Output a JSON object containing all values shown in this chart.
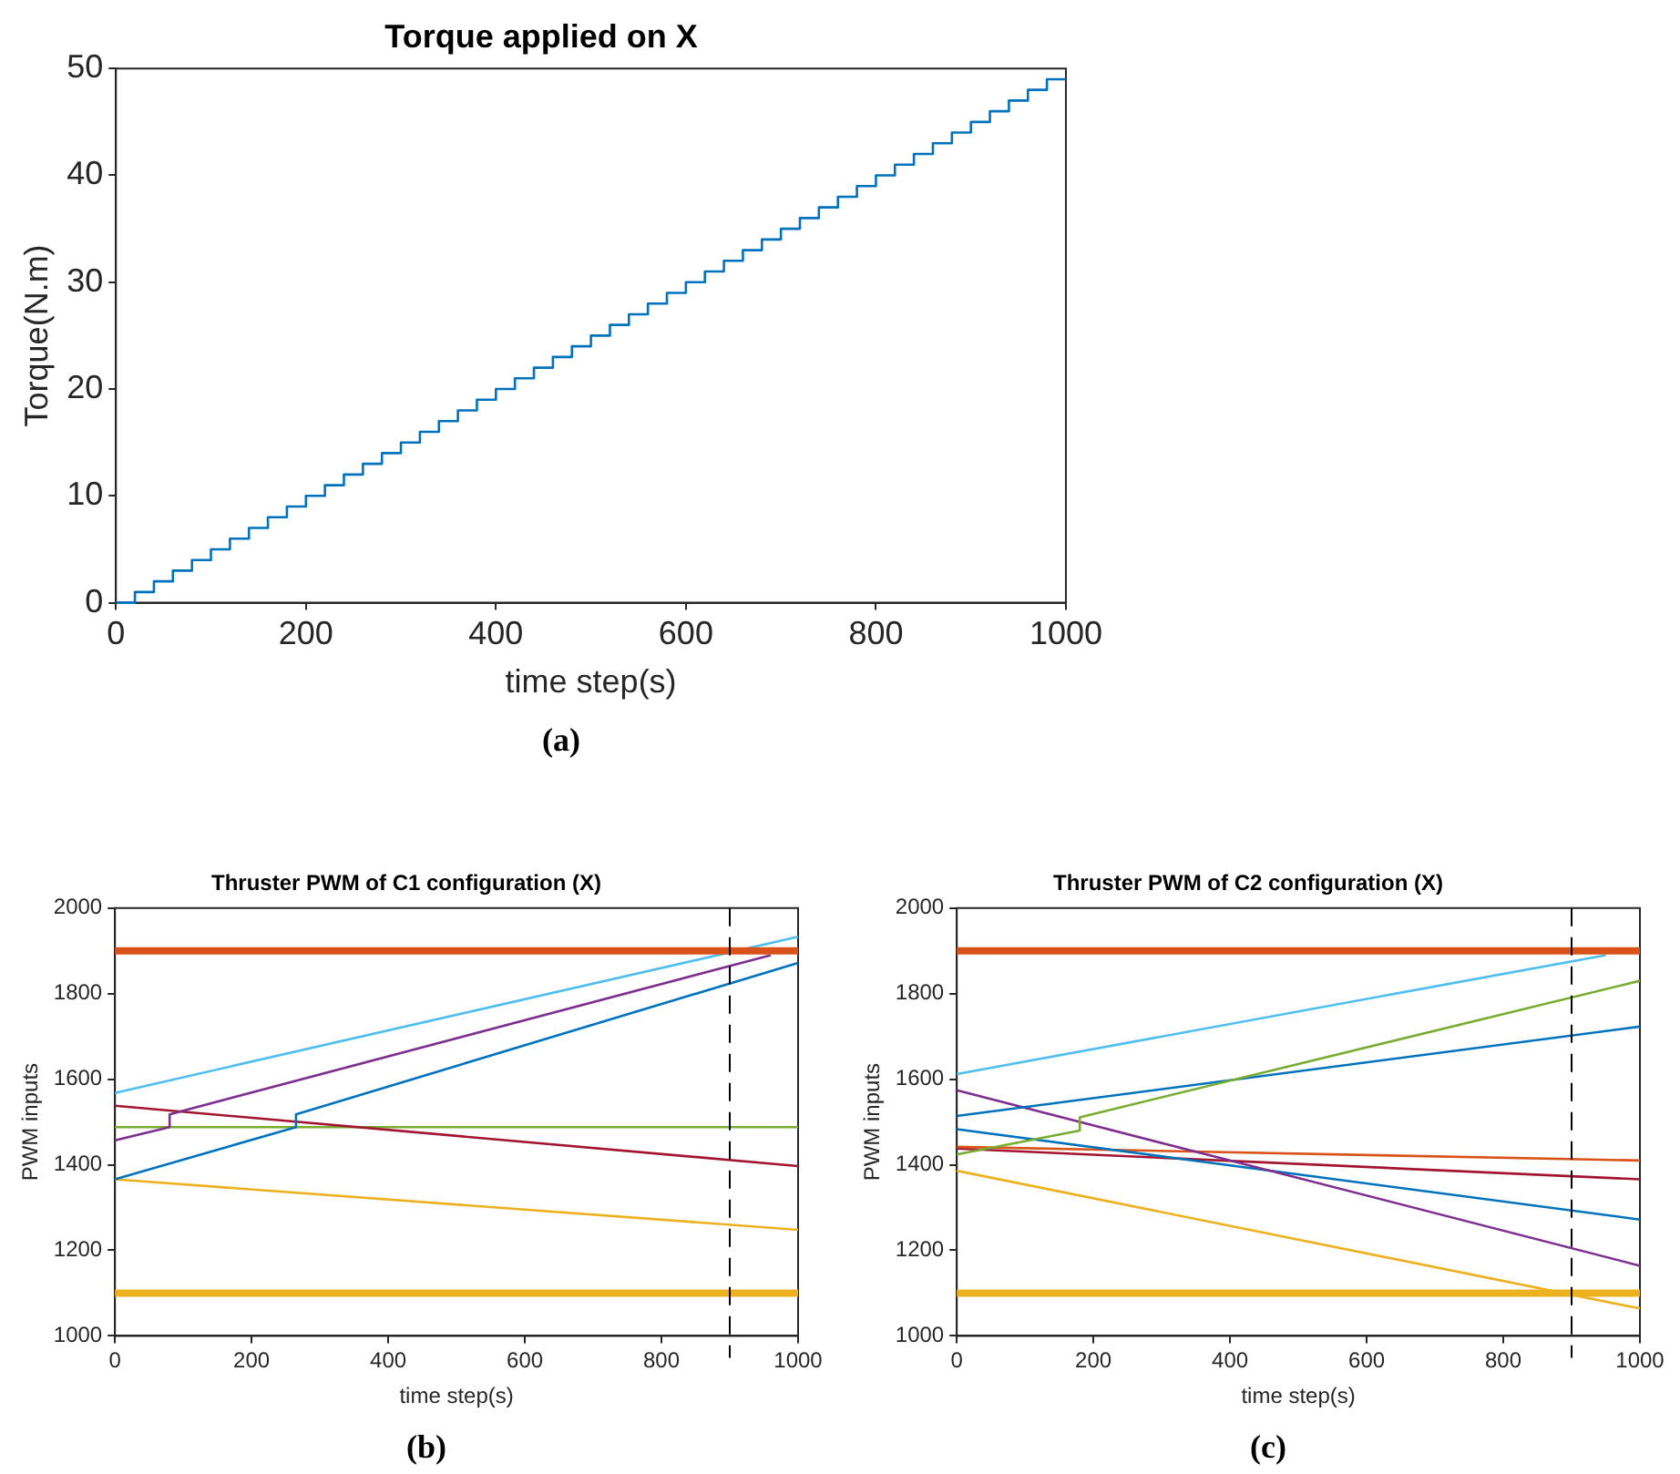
{
  "chart_data": [
    {
      "type": "step",
      "title": "Torque applied on X",
      "xlabel": "time step(s)",
      "ylabel": "Torque(N.m)",
      "annotations": [
        "(a)"
      ],
      "xlim": [
        0,
        1000
      ],
      "xticks": [
        0,
        200,
        400,
        600,
        800,
        1000
      ],
      "ylim": [
        0,
        50
      ],
      "yticks": [
        0,
        10,
        20,
        30,
        40,
        50
      ],
      "grid": false,
      "legend": false,
      "series": [
        {
          "color": "#0072bd",
          "x": [
            0,
            20,
            40,
            60,
            80,
            100,
            120,
            140,
            160,
            180,
            200,
            220,
            240,
            260,
            280,
            300,
            320,
            340,
            360,
            380,
            400,
            420,
            440,
            460,
            480,
            500,
            520,
            540,
            560,
            580,
            600,
            620,
            640,
            660,
            680,
            700,
            720,
            740,
            760,
            780,
            800,
            820,
            840,
            860,
            880,
            900,
            920,
            940,
            960,
            980,
            1000
          ],
          "values": [
            0,
            1,
            2,
            3,
            4,
            5,
            6,
            7,
            8,
            9,
            10,
            11,
            12,
            13,
            14,
            15,
            16,
            17,
            18,
            19,
            20,
            21,
            22,
            23,
            24,
            25,
            26,
            27,
            28,
            29,
            30,
            31,
            32,
            33,
            34,
            35,
            36,
            37,
            38,
            39,
            40,
            41,
            42,
            43,
            44,
            45,
            46,
            47,
            48,
            49,
            49
          ]
        }
      ]
    },
    {
      "type": "line",
      "title": "Thruster PWM of C1 configuration (X)",
      "xlabel": "time step(s)",
      "ylabel": "PWM inputs",
      "annotations": [
        "(b)"
      ],
      "xlim": [
        0,
        1000
      ],
      "xticks": [
        0,
        200,
        400,
        600,
        800,
        1000
      ],
      "ylim": [
        1000,
        2000
      ],
      "yticks": [
        1000,
        1200,
        1400,
        1600,
        1800,
        2000
      ],
      "grid": false,
      "legend": false,
      "series": [
        {
          "color": "#4dbeee",
          "x": [
            0,
            1000
          ],
          "values": [
            1568,
            1933
          ]
        },
        {
          "color": "#7e2f8e",
          "x": [
            0,
            80,
            80,
            960
          ],
          "values": [
            1457,
            1488,
            1518,
            1890
          ]
        },
        {
          "color": "#0072bd",
          "x": [
            0,
            265,
            265,
            1000
          ],
          "values": [
            1366,
            1488,
            1518,
            1872
          ]
        },
        {
          "color": "#a2142f",
          "x": [
            0,
            1000
          ],
          "values": [
            1538,
            1397
          ]
        },
        {
          "color": "#77ac30",
          "x": [
            0,
            1000
          ],
          "values": [
            1488,
            1488
          ]
        },
        {
          "color": "#edb120",
          "x": [
            0,
            1000
          ],
          "values": [
            1366,
            1248
          ]
        }
      ],
      "ref_lines": [
        {
          "axis": "y",
          "value": 1900,
          "color": "#d95319",
          "line_style": "solid"
        },
        {
          "axis": "y",
          "value": 1100,
          "color": "#edb120",
          "line_style": "solid"
        },
        {
          "axis": "x",
          "value": 900,
          "color": "#000000",
          "line_style": "dashed"
        }
      ]
    },
    {
      "type": "line",
      "title": "Thruster PWM of C2 configuration (X)",
      "xlabel": "time step(s)",
      "ylabel": "PWM inputs",
      "annotations": [
        "(c)"
      ],
      "xlim": [
        0,
        1000
      ],
      "xticks": [
        0,
        200,
        400,
        600,
        800,
        1000
      ],
      "ylim": [
        1000,
        2000
      ],
      "yticks": [
        1000,
        1200,
        1400,
        1600,
        1800,
        2000
      ],
      "grid": false,
      "legend": false,
      "series": [
        {
          "color": "#4dbeee",
          "x": [
            0,
            950
          ],
          "values": [
            1612,
            1890
          ]
        },
        {
          "color": "#77ac30",
          "x": [
            0,
            180,
            180,
            1000
          ],
          "values": [
            1424,
            1480,
            1511,
            1830
          ]
        },
        {
          "color": "#0072bd",
          "x": [
            0,
            1000
          ],
          "values": [
            1514,
            1723
          ]
        },
        {
          "color": "#7e2f8e",
          "x": [
            0,
            1000
          ],
          "values": [
            1574,
            1164
          ]
        },
        {
          "color": "#0072bd",
          "x": [
            0,
            1000
          ],
          "values": [
            1483,
            1272
          ]
        },
        {
          "color": "#d95319",
          "x": [
            0,
            1000
          ],
          "values": [
            1442,
            1410
          ]
        },
        {
          "color": "#a2142f",
          "x": [
            0,
            1000
          ],
          "values": [
            1438,
            1366
          ]
        },
        {
          "color": "#edb120",
          "x": [
            0,
            1000
          ],
          "values": [
            1386,
            1064
          ]
        }
      ],
      "ref_lines": [
        {
          "axis": "y",
          "value": 1900,
          "color": "#d95319",
          "line_style": "solid"
        },
        {
          "axis": "y",
          "value": 1100,
          "color": "#edb120",
          "line_style": "solid"
        },
        {
          "axis": "x",
          "value": 900,
          "color": "#000000",
          "line_style": "dashed"
        }
      ]
    }
  ]
}
